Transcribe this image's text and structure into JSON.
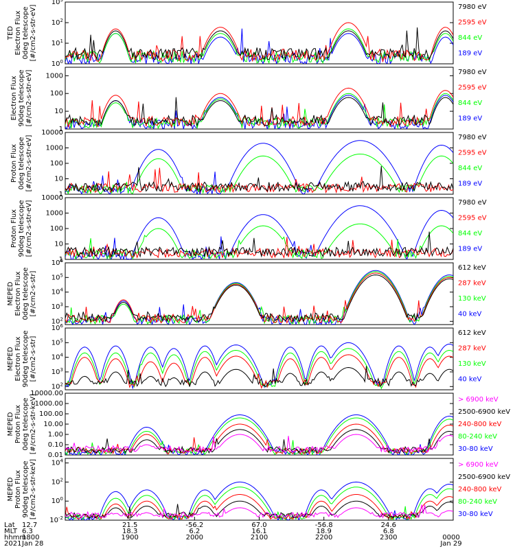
{
  "colors": {
    "blue": "#0000ff",
    "red": "#ff0000",
    "green": "#00ff00",
    "black": "#000000",
    "magenta": "#ff00ff"
  },
  "chart_data": [
    {
      "type": "line",
      "ylabel_lines": [
        "TED",
        "Electron Flux",
        "0deg telescope",
        "[#/cm2-s-str-eV]"
      ],
      "yscale": "log",
      "ylim": [
        1,
        1000
      ],
      "ticks": [
        {
          "v": 1,
          "label": "10^0"
        },
        {
          "v": 10,
          "label": "10^1"
        },
        {
          "v": 100,
          "label": "10^2"
        },
        {
          "v": 1000,
          "label": "10^3"
        }
      ],
      "legend": [
        {
          "text": "7980 eV",
          "color": "black"
        },
        {
          "text": "2595 eV",
          "color": "red"
        },
        {
          "text": "844 eV",
          "color": "green"
        },
        {
          "text": "189 eV",
          "color": "blue"
        }
      ],
      "peaks": [
        {
          "x": 0.13,
          "w": 0.015,
          "v": {
            "black": 40,
            "red": 50,
            "green": 30,
            "blue": 30
          }
        },
        {
          "x": 0.4,
          "w": 0.02,
          "v": {
            "black": 40,
            "red": 60,
            "green": 30,
            "blue": 20
          }
        },
        {
          "x": 0.73,
          "w": 0.02,
          "v": {
            "black": 40,
            "red": 100,
            "green": 50,
            "blue": 30
          }
        },
        {
          "x": 0.98,
          "w": 0.015,
          "v": {
            "black": 40,
            "red": 60,
            "green": 30,
            "blue": 20
          }
        }
      ]
    },
    {
      "type": "line",
      "ylabel_lines": [
        "Electron Flux",
        "90deg telescope",
        "[#/cm2-s-str-eV]"
      ],
      "yscale": "log",
      "ylim": [
        1,
        3000
      ],
      "ticks": [
        {
          "v": 1,
          "label": "1"
        },
        {
          "v": 10,
          "label": "10"
        },
        {
          "v": 100,
          "label": "100"
        },
        {
          "v": 1000,
          "label": "1000"
        }
      ],
      "legend": [
        {
          "text": "7980 eV",
          "color": "black"
        },
        {
          "text": "2595 eV",
          "color": "red"
        },
        {
          "text": "844 eV",
          "color": "green"
        },
        {
          "text": "189 eV",
          "color": "blue"
        }
      ],
      "peaks": [
        {
          "x": 0.13,
          "w": 0.015,
          "v": {
            "black": 40,
            "red": 80,
            "green": 30,
            "blue": 40
          }
        },
        {
          "x": 0.4,
          "w": 0.02,
          "v": {
            "black": 40,
            "red": 100,
            "green": 50,
            "blue": 60
          }
        },
        {
          "x": 0.73,
          "w": 0.02,
          "v": {
            "black": 60,
            "red": 200,
            "green": 100,
            "blue": 80
          }
        },
        {
          "x": 0.98,
          "w": 0.015,
          "v": {
            "black": 60,
            "red": 150,
            "green": 100,
            "blue": 80
          }
        }
      ]
    },
    {
      "type": "line",
      "ylabel_lines": [
        "Proton Flux",
        "0deg telescope",
        "[#/cm2-s-str-eV]"
      ],
      "yscale": "log",
      "ylim": [
        1,
        10000
      ],
      "ticks": [
        {
          "v": 1,
          "label": "1"
        },
        {
          "v": 10,
          "label": "10"
        },
        {
          "v": 100,
          "label": "100"
        },
        {
          "v": 1000,
          "label": "1000"
        },
        {
          "v": 10000,
          "label": "10000"
        }
      ],
      "legend": [
        {
          "text": "7980 eV",
          "color": "black"
        },
        {
          "text": "2595 eV",
          "color": "red"
        },
        {
          "text": "844 eV",
          "color": "green"
        },
        {
          "text": "189 eV",
          "color": "blue"
        }
      ],
      "peaks": [
        {
          "x": 0.24,
          "w": 0.02,
          "v": {
            "blue": 800,
            "green": 200
          }
        },
        {
          "x": 0.51,
          "w": 0.025,
          "v": {
            "blue": 2000,
            "green": 300
          }
        },
        {
          "x": 0.76,
          "w": 0.03,
          "v": {
            "blue": 3000,
            "green": 400
          }
        },
        {
          "x": 0.97,
          "w": 0.02,
          "v": {
            "blue": 1500,
            "green": 300
          }
        }
      ]
    },
    {
      "type": "line",
      "ylabel_lines": [
        "Proton Flux",
        "90deg telescope",
        "[#/cm2-s-str-eV]"
      ],
      "yscale": "log",
      "ylim": [
        1,
        10000
      ],
      "ticks": [
        {
          "v": 1,
          "label": "1"
        },
        {
          "v": 10,
          "label": "10"
        },
        {
          "v": 100,
          "label": "100"
        },
        {
          "v": 1000,
          "label": "1000"
        },
        {
          "v": 10000,
          "label": "10000"
        }
      ],
      "legend": [
        {
          "text": "7980 eV",
          "color": "black"
        },
        {
          "text": "2595 eV",
          "color": "red"
        },
        {
          "text": "844 eV",
          "color": "green"
        },
        {
          "text": "189 eV",
          "color": "blue"
        }
      ],
      "peaks": [
        {
          "x": 0.24,
          "w": 0.02,
          "v": {
            "blue": 500,
            "green": 100
          }
        },
        {
          "x": 0.51,
          "w": 0.025,
          "v": {
            "blue": 800,
            "green": 150
          }
        },
        {
          "x": 0.76,
          "w": 0.03,
          "v": {
            "blue": 3000,
            "green": 200
          }
        },
        {
          "x": 0.97,
          "w": 0.02,
          "v": {
            "blue": 1500,
            "green": 150
          }
        }
      ]
    },
    {
      "type": "line",
      "ylabel_lines": [
        "MEPED",
        "Electron Flux",
        "0deg telescope",
        "[#/cm2-s-str]"
      ],
      "yscale": "log",
      "ylim": [
        60,
        1000000
      ],
      "ticks": [
        {
          "v": 100,
          "label": "10^2"
        },
        {
          "v": 1000,
          "label": "10^3"
        },
        {
          "v": 10000,
          "label": "10^4"
        },
        {
          "v": 100000,
          "label": "10^5"
        },
        {
          "v": 1000000,
          "label": "10^6"
        }
      ],
      "legend": [
        {
          "text": "612 keV",
          "color": "black"
        },
        {
          "text": "287 keV",
          "color": "red"
        },
        {
          "text": "130 keV",
          "color": "green"
        },
        {
          "text": "40 keV",
          "color": "blue"
        }
      ],
      "peaks": [
        {
          "x": 0.15,
          "w": 0.012,
          "v": {
            "black": 2000,
            "red": 3000,
            "green": 1500,
            "blue": 2500
          }
        },
        {
          "x": 0.44,
          "w": 0.02,
          "v": {
            "black": 30000,
            "red": 35000,
            "green": 40000,
            "blue": 45000
          }
        },
        {
          "x": 0.8,
          "w": 0.022,
          "v": {
            "black": 150000,
            "red": 200000,
            "green": 250000,
            "blue": 300000
          }
        },
        {
          "x": 0.99,
          "w": 0.02,
          "v": {
            "black": 80000,
            "red": 100000,
            "green": 120000,
            "blue": 150000
          }
        }
      ]
    },
    {
      "type": "line",
      "ylabel_lines": [
        "MEPED",
        "Electron Flux",
        "90deg telescope",
        "[#/cm2-s-str]"
      ],
      "yscale": "log",
      "ylim": [
        60,
        1000000
      ],
      "ticks": [
        {
          "v": 100,
          "label": "10^2"
        },
        {
          "v": 1000,
          "label": "10^3"
        },
        {
          "v": 10000,
          "label": "10^4"
        },
        {
          "v": 100000,
          "label": "10^5"
        },
        {
          "v": 1000000,
          "label": "10^6"
        }
      ],
      "legend": [
        {
          "text": "612 keV",
          "color": "black"
        },
        {
          "text": "287 keV",
          "color": "red"
        },
        {
          "text": "130 keV",
          "color": "green"
        },
        {
          "text": "40 keV",
          "color": "blue"
        }
      ],
      "peaks": [
        {
          "x": 0.05,
          "w": 0.012,
          "v": {
            "blue": 50000,
            "green": 20000,
            "red": 10000,
            "black": 500
          }
        },
        {
          "x": 0.13,
          "w": 0.012,
          "v": {
            "blue": 60000,
            "green": 20000,
            "red": 8000,
            "black": 1000
          }
        },
        {
          "x": 0.22,
          "w": 0.012,
          "v": {
            "blue": 50000,
            "green": 20000,
            "red": 5000,
            "black": 500
          }
        },
        {
          "x": 0.28,
          "w": 0.012,
          "v": {
            "blue": 40000,
            "green": 15000,
            "red": 4000,
            "black": 400
          }
        },
        {
          "x": 0.36,
          "w": 0.012,
          "v": {
            "blue": 60000,
            "green": 25000,
            "red": 10000,
            "black": 1000
          }
        },
        {
          "x": 0.44,
          "w": 0.02,
          "v": {
            "blue": 70000,
            "green": 30000,
            "red": 12000,
            "black": 1500
          }
        },
        {
          "x": 0.58,
          "w": 0.012,
          "v": {
            "blue": 50000,
            "green": 20000,
            "red": 8000,
            "black": 800
          }
        },
        {
          "x": 0.66,
          "w": 0.012,
          "v": {
            "blue": 60000,
            "green": 25000,
            "red": 10000,
            "black": 1000
          }
        },
        {
          "x": 0.73,
          "w": 0.02,
          "v": {
            "blue": 100000,
            "green": 40000,
            "red": 15000,
            "black": 2000
          }
        },
        {
          "x": 0.86,
          "w": 0.012,
          "v": {
            "blue": 60000,
            "green": 25000,
            "red": 10000,
            "black": 1000
          }
        },
        {
          "x": 0.94,
          "w": 0.012,
          "v": {
            "blue": 50000,
            "green": 20000,
            "red": 8000,
            "black": 800
          }
        },
        {
          "x": 0.99,
          "w": 0.015,
          "v": {
            "blue": 80000,
            "green": 30000,
            "red": 12000,
            "black": 1500
          }
        }
      ]
    },
    {
      "type": "line",
      "ylabel_lines": [
        "MEPED",
        "Proton Flux",
        "0deg telescope",
        "[#/cm2-s-str-keV]"
      ],
      "yscale": "log",
      "ylim": [
        0.01,
        10000
      ],
      "ticks": [
        {
          "v": 0.01,
          "label": "0.01"
        },
        {
          "v": 0.1,
          "label": "0.10"
        },
        {
          "v": 1,
          "label": "1.00"
        },
        {
          "v": 10,
          "label": "10.00"
        },
        {
          "v": 100,
          "label": "100.00"
        },
        {
          "v": 1000,
          "label": "1000.00"
        },
        {
          "v": 10000,
          "label": "10000.00"
        }
      ],
      "legend": [
        {
          "text": "> 6900 keV",
          "color": "magenta"
        },
        {
          "text": "2500-6900 keV",
          "color": "black"
        },
        {
          "text": "240-800 keV",
          "color": "red"
        },
        {
          "text": "80-240 keV",
          "color": "green"
        },
        {
          "text": "30-80 keV",
          "color": "blue"
        }
      ],
      "peaks": [
        {
          "x": 0.21,
          "w": 0.015,
          "v": {
            "blue": 5,
            "green": 2,
            "red": 1,
            "black": 0.3,
            "magenta": 0.1
          }
        },
        {
          "x": 0.45,
          "w": 0.022,
          "v": {
            "blue": 80,
            "green": 40,
            "red": 10,
            "black": 3,
            "magenta": 1
          }
        },
        {
          "x": 0.75,
          "w": 0.022,
          "v": {
            "blue": 80,
            "green": 40,
            "red": 10,
            "black": 3,
            "magenta": 1
          }
        },
        {
          "x": 0.99,
          "w": 0.015,
          "v": {
            "blue": 60,
            "green": 30,
            "red": 8,
            "black": 2,
            "magenta": 0.8
          }
        }
      ]
    },
    {
      "type": "line",
      "ylabel_lines": [
        "MEPED",
        "Proton Flux",
        "90deg telescope",
        "[#/cm2-s-str-keV]"
      ],
      "yscale": "log",
      "ylim": [
        0.01,
        30000
      ],
      "ticks": [
        {
          "v": 0.01,
          "label": "10^-2"
        },
        {
          "v": 1,
          "label": "10^0"
        },
        {
          "v": 100,
          "label": "10^2"
        },
        {
          "v": 10000,
          "label": "10^4"
        }
      ],
      "legend": [
        {
          "text": "> 6900 keV",
          "color": "magenta"
        },
        {
          "text": "2500-6900 keV",
          "color": "black"
        },
        {
          "text": "240-800 keV",
          "color": "red"
        },
        {
          "text": "80-240 keV",
          "color": "green"
        },
        {
          "text": "30-80 keV",
          "color": "blue"
        }
      ],
      "peaks": [
        {
          "x": 0.13,
          "w": 0.012,
          "v": {
            "blue": 10,
            "green": 2,
            "red": 0.5,
            "black": 0.2,
            "magenta": 0.05
          }
        },
        {
          "x": 0.21,
          "w": 0.015,
          "v": {
            "blue": 15,
            "green": 4,
            "red": 1,
            "black": 0.3,
            "magenta": 0.06
          }
        },
        {
          "x": 0.36,
          "w": 0.012,
          "v": {
            "blue": 15,
            "green": 4,
            "red": 1,
            "black": 0.3,
            "magenta": 0.06
          }
        },
        {
          "x": 0.45,
          "w": 0.022,
          "v": {
            "blue": 100,
            "green": 30,
            "red": 5,
            "black": 1,
            "magenta": 0.2
          }
        },
        {
          "x": 0.66,
          "w": 0.012,
          "v": {
            "blue": 15,
            "green": 4,
            "red": 1,
            "black": 0.3,
            "magenta": 0.06
          }
        },
        {
          "x": 0.75,
          "w": 0.022,
          "v": {
            "blue": 100,
            "green": 30,
            "red": 5,
            "black": 1,
            "magenta": 0.2
          }
        },
        {
          "x": 0.94,
          "w": 0.012,
          "v": {
            "blue": 20,
            "green": 5,
            "red": 1,
            "black": 0.3,
            "magenta": 0.06
          }
        },
        {
          "x": 0.99,
          "w": 0.015,
          "v": {
            "blue": 60,
            "green": 20,
            "red": 3,
            "black": 0.8,
            "magenta": 0.1
          }
        }
      ]
    }
  ],
  "x_axis": {
    "row_labels": [
      "Lat",
      "MLT",
      "hhmm",
      "2021"
    ],
    "ticks": [
      {
        "pos": 0.0,
        "lat": "12.7",
        "mlt": "6.3",
        "hhmm": "1800",
        "date": "Jan 28"
      },
      {
        "pos": 0.1667,
        "lat": "21.5",
        "mlt": "18.3",
        "hhmm": "1900",
        "date": ""
      },
      {
        "pos": 0.3333,
        "lat": "-56.2",
        "mlt": "6.2",
        "hhmm": "2000",
        "date": ""
      },
      {
        "pos": 0.5,
        "lat": "67.0",
        "mlt": "16.1",
        "hhmm": "2100",
        "date": ""
      },
      {
        "pos": 0.6667,
        "lat": "-56.8",
        "mlt": "18.9",
        "hhmm": "2200",
        "date": ""
      },
      {
        "pos": 0.8333,
        "lat": "24.6",
        "mlt": "6.8",
        "hhmm": "2300",
        "date": ""
      },
      {
        "pos": 1.0,
        "lat": "",
        "mlt": "",
        "hhmm": "0000",
        "date": "Jan 29"
      }
    ]
  }
}
